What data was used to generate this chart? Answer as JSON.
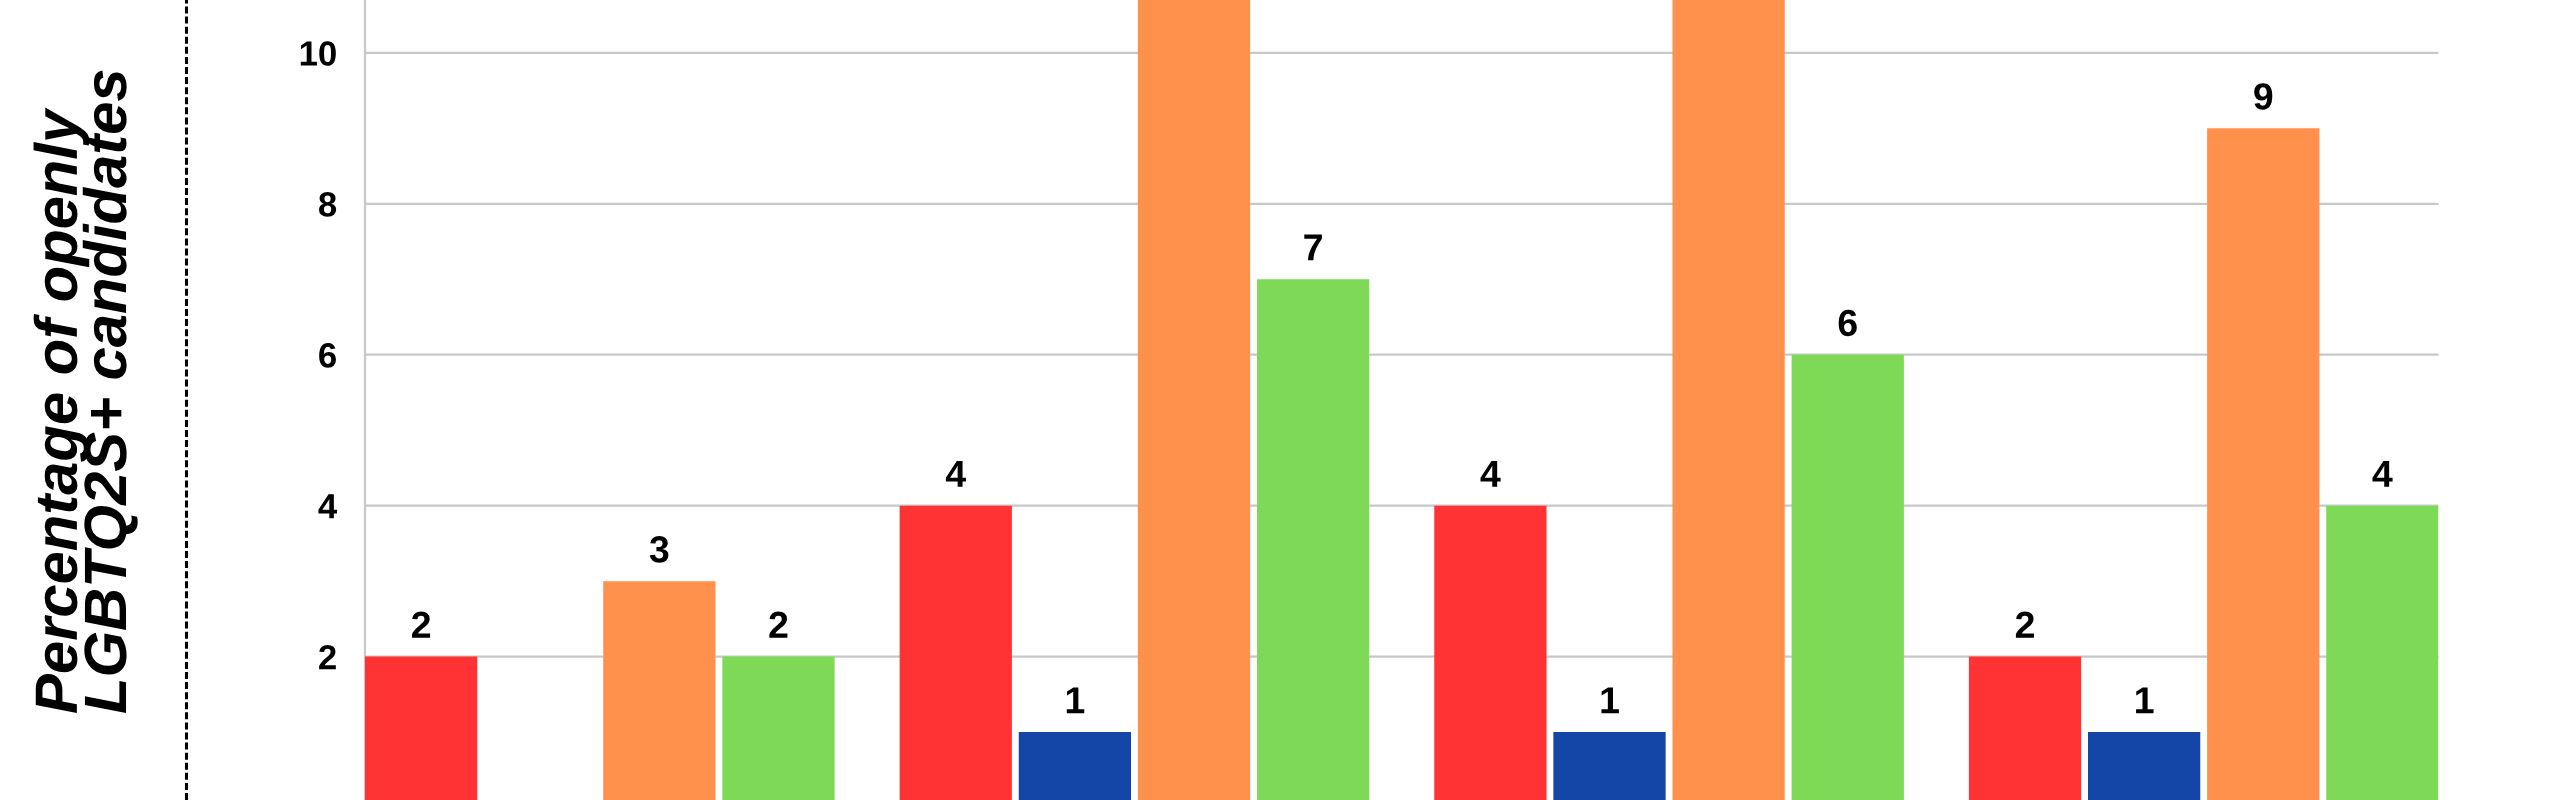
{
  "chart_data": {
    "type": "bar",
    "ylabel": "Percentage of openly\nLGBTQ2S+ candidates",
    "categories": [
      null,
      null,
      null,
      null
    ],
    "series": [
      {
        "color": "#ff3333",
        "values": [
          2,
          4,
          4,
          2
        ],
        "value_labels": [
          "2",
          "4",
          "4",
          "2"
        ]
      },
      {
        "color": "#1446a8",
        "values": [
          null,
          1,
          1,
          1
        ],
        "value_labels": [
          null,
          "1",
          "1",
          "1"
        ]
      },
      {
        "color": "#ff914d",
        "values": [
          3,
          10.7,
          10.7,
          9
        ],
        "value_labels": [
          "3",
          null,
          null,
          "9"
        ]
      },
      {
        "color": "#7ed957",
        "values": [
          2,
          7,
          6,
          4
        ],
        "value_labels": [
          "2",
          "7",
          "6",
          "4"
        ]
      }
    ],
    "ylim": [
      0.1,
      10.7
    ],
    "yticks": [
      2,
      4,
      6,
      8,
      10
    ],
    "grid": "y",
    "tick_labels": "y"
  }
}
